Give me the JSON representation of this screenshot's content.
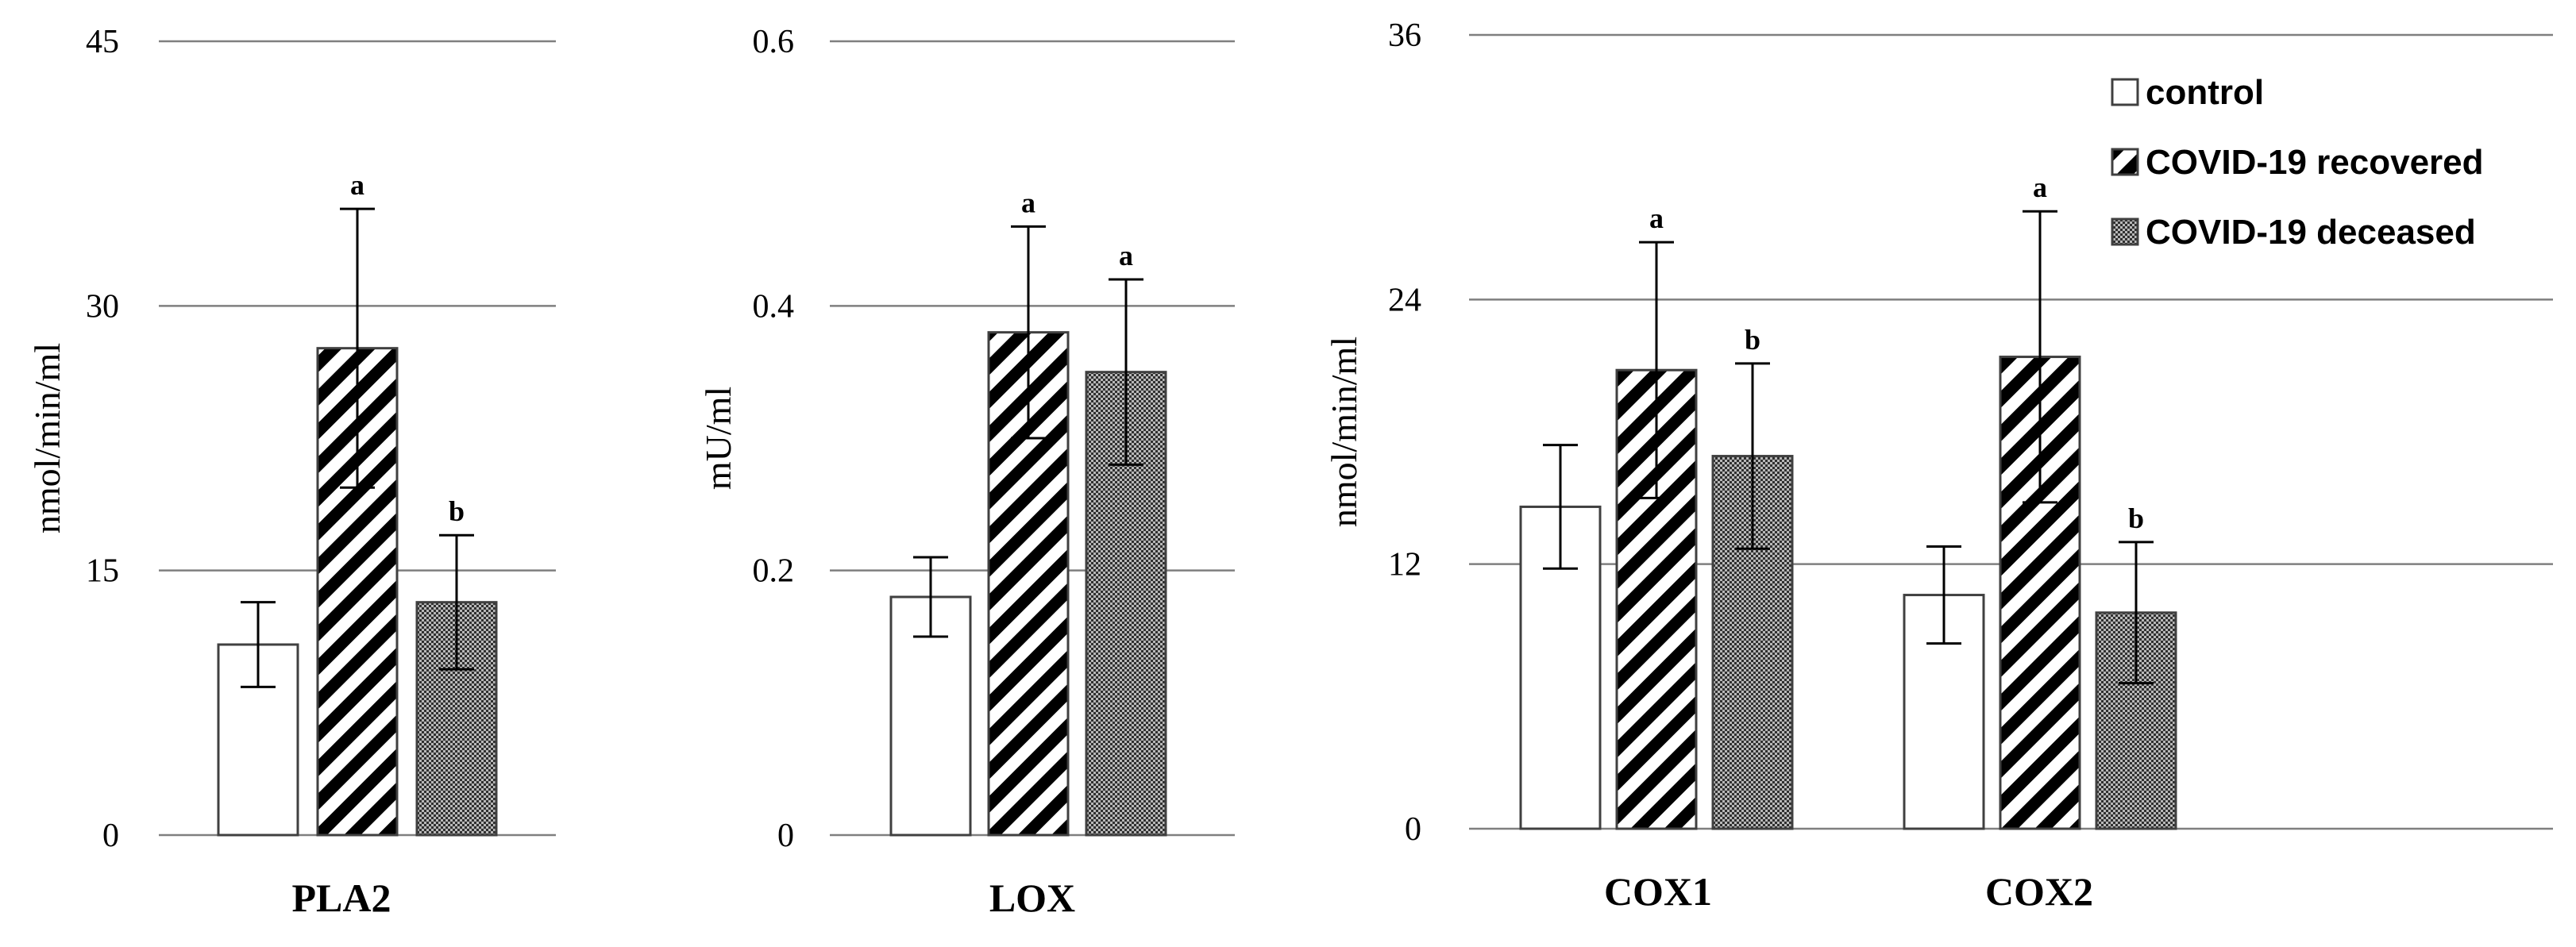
{
  "chart_data": [
    {
      "type": "bar",
      "title": "",
      "xlabel": "PLA2",
      "ylabel": "nmol/min/ml",
      "ylim": [
        0,
        45
      ],
      "yticks": [
        "0",
        "15",
        "30",
        "45"
      ],
      "grid": true,
      "categories": [
        "PLA2"
      ],
      "series": [
        {
          "name": "control",
          "values": [
            10.8
          ],
          "error": [
            2.4
          ],
          "sig": [
            ""
          ]
        },
        {
          "name": "COVID-19 recovered",
          "values": [
            27.6
          ],
          "error": [
            7.9
          ],
          "sig": [
            "a"
          ]
        },
        {
          "name": "COVID-19 deceased",
          "values": [
            13.2
          ],
          "error": [
            3.8
          ],
          "sig": [
            "b"
          ]
        }
      ]
    },
    {
      "type": "bar",
      "title": "",
      "xlabel": "LOX",
      "ylabel": "mU/ml",
      "ylim": [
        0,
        0.6
      ],
      "yticks": [
        "0",
        "0.2",
        "0.4",
        "0.6"
      ],
      "grid": true,
      "categories": [
        "LOX"
      ],
      "series": [
        {
          "name": "control",
          "values": [
            0.18
          ],
          "error": [
            0.03
          ],
          "sig": [
            ""
          ]
        },
        {
          "name": "COVID-19 recovered",
          "values": [
            0.38
          ],
          "error": [
            0.08
          ],
          "sig": [
            "a"
          ]
        },
        {
          "name": "COVID-19 deceased",
          "values": [
            0.35
          ],
          "error": [
            0.07
          ],
          "sig": [
            "a"
          ]
        }
      ]
    },
    {
      "type": "bar",
      "title": "",
      "xlabel": "",
      "ylabel": "nmol/min/ml",
      "ylim": [
        0,
        36
      ],
      "yticks": [
        "0",
        "12",
        "24",
        "36"
      ],
      "grid": true,
      "categories": [
        "COX1",
        "COX2"
      ],
      "series": [
        {
          "name": "control",
          "values": [
            14.6,
            10.6
          ],
          "error": [
            2.8,
            2.2
          ],
          "sig": [
            "",
            ""
          ]
        },
        {
          "name": "COVID-19 recovered",
          "values": [
            20.8,
            21.4
          ],
          "error": [
            5.8,
            6.6
          ],
          "sig": [
            "a",
            "a"
          ]
        },
        {
          "name": "COVID-19 deceased",
          "values": [
            16.9,
            9.8
          ],
          "error": [
            4.2,
            3.2
          ],
          "sig": [
            "b",
            "b"
          ]
        }
      ]
    }
  ],
  "legend": {
    "position": "top-right",
    "items": [
      "control",
      "COVID-19 recovered",
      "COVID-19 deceased"
    ]
  },
  "colors": {
    "bar_edge": "#404040",
    "grid": "#7f7f7f",
    "axis": "#7f7f7f",
    "error_bar": "#000000"
  }
}
